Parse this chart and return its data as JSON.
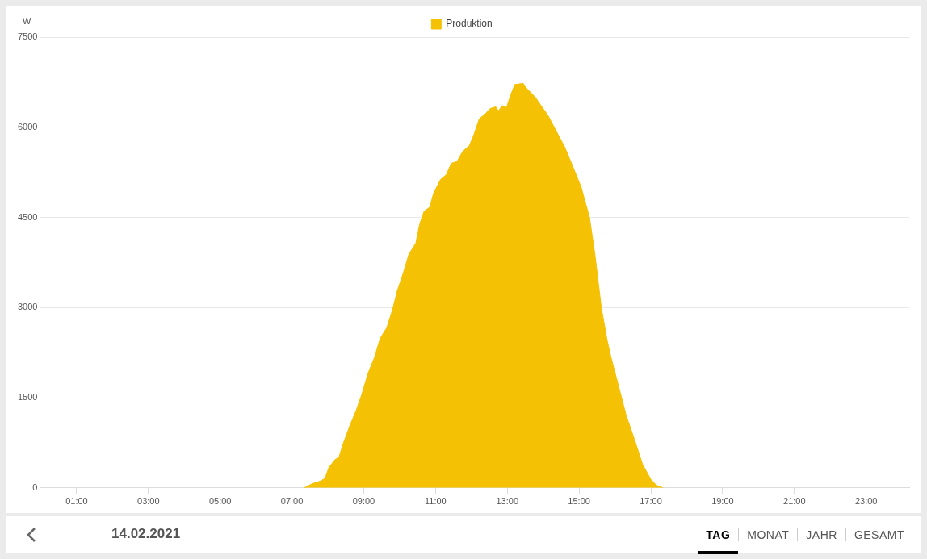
{
  "chart_data": {
    "type": "area",
    "subtitle": "14.02.2021",
    "ylabel": "W",
    "annotations": [
      "TAG",
      "MONAT",
      "JAHR",
      "GESAMT"
    ],
    "x": [
      7.34,
      7.57,
      7.8,
      7.92,
      8.03,
      8.2,
      8.31,
      8.43,
      8.61,
      8.79,
      8.95,
      9.11,
      9.3,
      9.46,
      9.64,
      9.8,
      9.94,
      10.1,
      10.26,
      10.45,
      10.56,
      10.68,
      10.84,
      10.95,
      11.14,
      11.3,
      11.44,
      11.6,
      11.76,
      11.94,
      12.06,
      12.22,
      12.4,
      12.52,
      12.68,
      12.75,
      12.86,
      12.98,
      13.09,
      13.21,
      13.44,
      13.55,
      13.78,
      13.94,
      14.13,
      14.36,
      14.6,
      14.83,
      15.06,
      15.29,
      15.44,
      15.62,
      15.78,
      15.89,
      16.08,
      16.31,
      16.54,
      16.77,
      17.0,
      17.16,
      17.34
    ],
    "series": [
      {
        "name": "Produktion",
        "color": "#f5c105",
        "values": [
          0,
          70,
          115,
          160,
          340,
          470,
          510,
          740,
          1030,
          1290,
          1560,
          1890,
          2170,
          2490,
          2660,
          2960,
          3290,
          3570,
          3890,
          4070,
          4390,
          4600,
          4670,
          4910,
          5130,
          5210,
          5400,
          5430,
          5600,
          5690,
          5860,
          6140,
          6230,
          6310,
          6340,
          6270,
          6360,
          6330,
          6530,
          6710,
          6730,
          6640,
          6500,
          6360,
          6200,
          5940,
          5670,
          5340,
          5000,
          4500,
          3890,
          3000,
          2460,
          2170,
          1740,
          1210,
          810,
          390,
          140,
          40,
          0
        ]
      }
    ],
    "xlim": [
      0,
      24.2
    ],
    "xticks": [
      {
        "value": 1,
        "label": "01:00"
      },
      {
        "value": 3,
        "label": "03:00"
      },
      {
        "value": 5,
        "label": "05:00"
      },
      {
        "value": 7,
        "label": "07:00"
      },
      {
        "value": 9,
        "label": "09:00"
      },
      {
        "value": 11,
        "label": "11:00"
      },
      {
        "value": 13,
        "label": "13:00"
      },
      {
        "value": 15,
        "label": "15:00"
      },
      {
        "value": 17,
        "label": "17:00"
      },
      {
        "value": 19,
        "label": "19:00"
      },
      {
        "value": 21,
        "label": "21:00"
      },
      {
        "value": 23,
        "label": "23:00"
      }
    ],
    "ylim": [
      0,
      7500
    ],
    "yticks": [
      0,
      1500,
      3000,
      4500,
      6000,
      7500
    ],
    "grid": "y",
    "legend": "top",
    "marker": "none"
  }
}
